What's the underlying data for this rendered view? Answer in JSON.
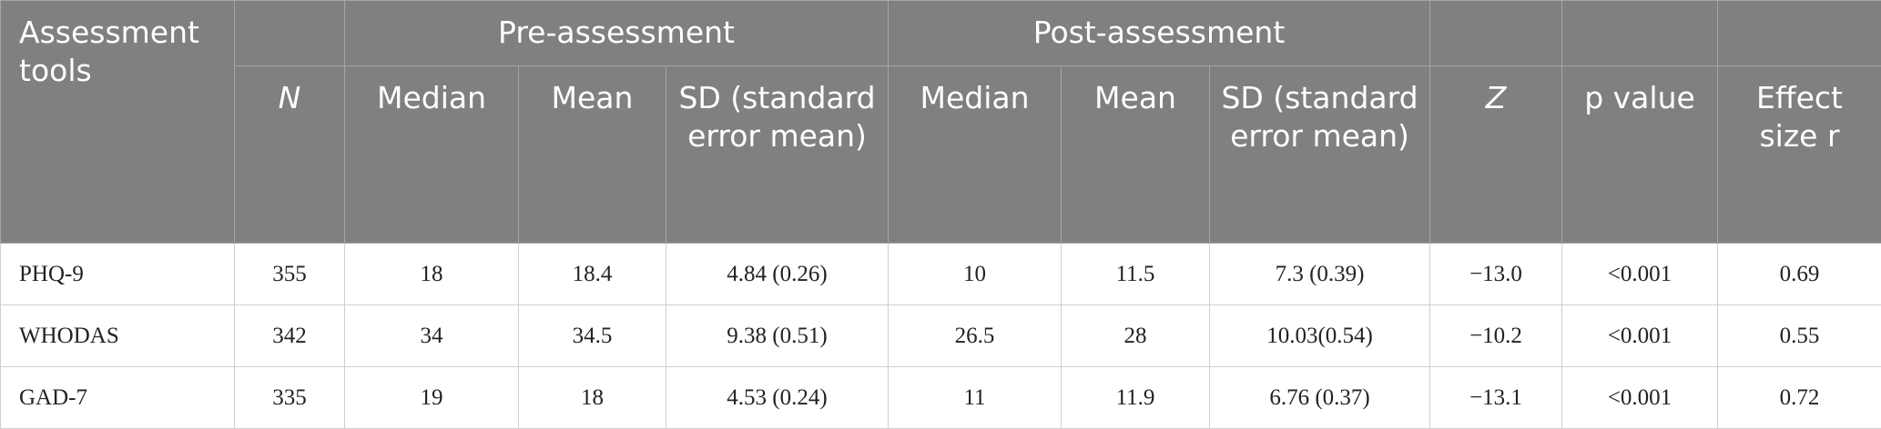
{
  "table": {
    "header": {
      "corner": "Assessment tools",
      "groups": [
        "Pre-assessment",
        "Post-assessment"
      ],
      "columns": [
        "N",
        "Median",
        "Mean",
        "SD (standard error mean)",
        "Median",
        "Mean",
        "SD (standard error mean)",
        "Z",
        "p value",
        "Effect size r"
      ]
    },
    "rows": [
      [
        "PHQ-9",
        "355",
        "18",
        "18.4",
        "4.84 (0.26)",
        "10",
        "11.5",
        "7.3 (0.39)",
        "−13.0",
        "<0.001",
        "0.69"
      ],
      [
        "WHODAS",
        "342",
        "34",
        "34.5",
        "9.38 (0.51)",
        "26.5",
        "28",
        "10.03(0.54)",
        "−10.2",
        "<0.001",
        "0.55"
      ],
      [
        "GAD-7",
        "335",
        "19",
        "18",
        "4.53 (0.24)",
        "11",
        "11.9",
        "6.76 (0.37)",
        "−13.1",
        "<0.001",
        "0.72"
      ]
    ]
  }
}
